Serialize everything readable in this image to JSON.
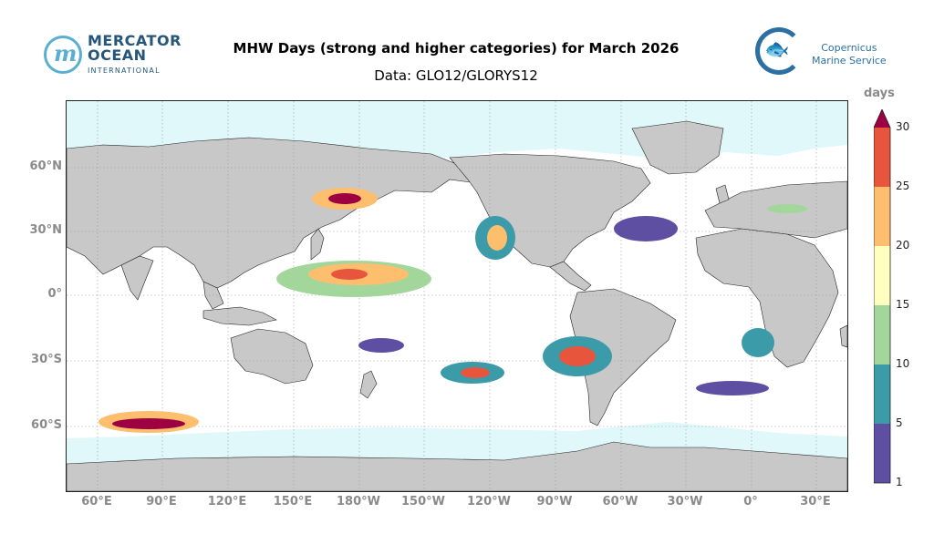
{
  "header": {
    "title": "MHW Days (strong and higher categories) for March 2026",
    "subtitle": "Data: GLO12/GLORYS12"
  },
  "logos": {
    "left": {
      "mark": "m",
      "name_line1": "MERCATOR",
      "name_line2": "OCEAN",
      "sub": "INTERNATIONAL"
    },
    "right": {
      "line1": "Copernicus",
      "line2": "Marine Service"
    }
  },
  "map": {
    "lat_labels": [
      "60°N",
      "30°N",
      "0°",
      "30°S",
      "60°S"
    ],
    "lon_labels": [
      "60°E",
      "90°E",
      "120°E",
      "150°E",
      "180°W",
      "150°W",
      "120°W",
      "90°W",
      "60°W",
      "30°W",
      "0°",
      "30°E"
    ],
    "colors": {
      "land": "#c8c8c8",
      "sea_ice": "#e0f8fa",
      "ocean": "#ffffff",
      "grid": "#9a9a9a"
    }
  },
  "colorbar": {
    "label": "days",
    "ticks": [
      "1",
      "5",
      "10",
      "15",
      "20",
      "25",
      "30"
    ],
    "colors": [
      "#5e4fa2",
      "#3c9ba8",
      "#a3d69a",
      "#ffffbf",
      "#fdbe6e",
      "#e8553d",
      "#9e0142"
    ]
  }
}
